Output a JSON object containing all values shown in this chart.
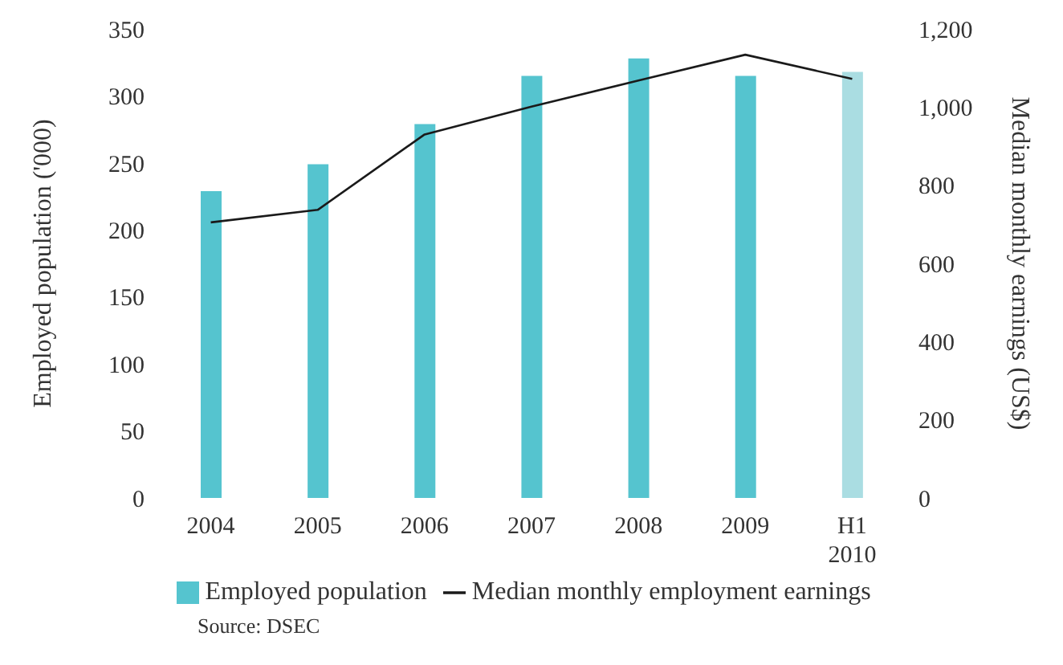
{
  "chart_data": {
    "type": "bar",
    "categories": [
      "2004",
      "2005",
      "2006",
      "2007",
      "2008",
      "2009",
      "H1 2010"
    ],
    "series": [
      {
        "name": "Employed population",
        "color": "#55c4cf",
        "colors": [
          "#55c4cf",
          "#55c4cf",
          "#55c4cf",
          "#55c4cf",
          "#55c4cf",
          "#55c4cf",
          "#aadde2"
        ],
        "values": [
          229,
          249,
          279,
          315,
          328,
          315,
          318
        ]
      },
      {
        "name": "Median monthly employment earnings",
        "type": "line",
        "axis": "y2",
        "color": "#1a1a1a",
        "values": [
          705,
          737,
          930,
          1001,
          1068,
          1134,
          1072
        ]
      }
    ],
    "ylabel": "Employed population ('000)",
    "y2label": "Median monthly earnings (US$)",
    "ylim": [
      0,
      350
    ],
    "yticks": [
      0,
      50,
      100,
      150,
      200,
      250,
      300,
      350
    ],
    "y2lim": [
      0,
      1200
    ],
    "y2ticks": [
      0,
      200,
      400,
      600,
      800,
      {
        "value": 1000,
        "label": "1,000"
      },
      {
        "value": 1200,
        "label": "1,200"
      }
    ],
    "grid": false,
    "legend": "bottom",
    "marker": "none",
    "annotations": [
      "Source: DSEC"
    ]
  }
}
